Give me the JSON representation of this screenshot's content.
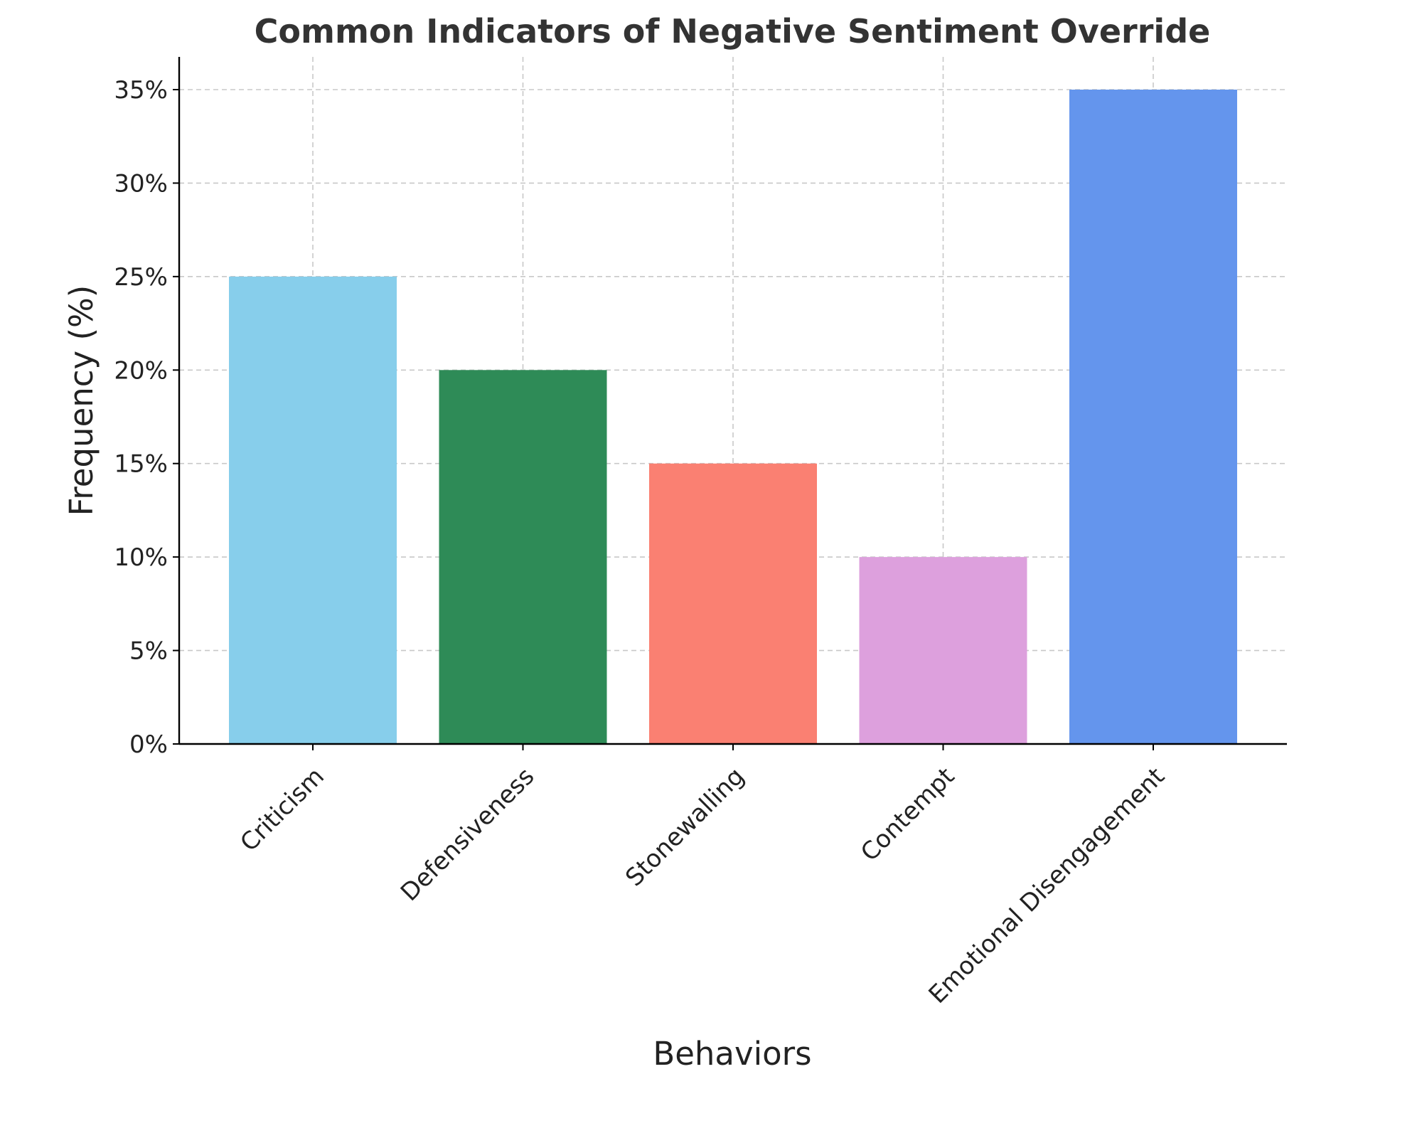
{
  "chart_data": {
    "type": "bar",
    "title": "Common Indicators of Negative Sentiment Override",
    "xlabel": "Behaviors",
    "ylabel": "Frequency (%)",
    "categories": [
      "Criticism",
      "Defensiveness",
      "Stonewalling",
      "Contempt",
      "Emotional Disengagement"
    ],
    "values": [
      25,
      20,
      15,
      10,
      35
    ],
    "colors": [
      "#87ceeb",
      "#2e8b57",
      "#fa8072",
      "#dda0dd",
      "#6495ed"
    ],
    "ylim": [
      0,
      36.75
    ],
    "yticks": [
      0,
      5,
      10,
      15,
      20,
      25,
      30,
      35
    ],
    "ytick_labels": [
      "0%",
      "5%",
      "10%",
      "15%",
      "20%",
      "25%",
      "30%",
      "35%"
    ],
    "grid": true,
    "legend": "none"
  }
}
